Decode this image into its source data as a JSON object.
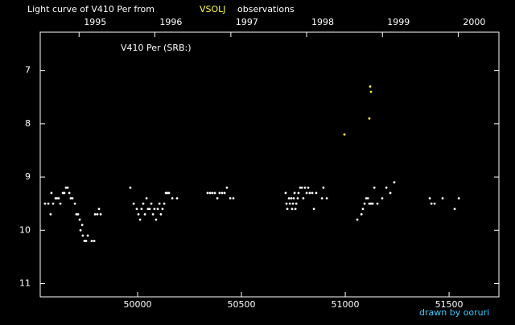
{
  "chart_data": {
    "type": "scatter",
    "title": "Light curve of V410 Per from",
    "title_highlight": "VSOLJ",
    "title_suffix": "observations",
    "annotations": [
      "V410 Per (SRB:)",
      "drawn by ooruri"
    ],
    "xlim": [
      49531,
      51740
    ],
    "ylim": [
      11.25,
      6.28
    ],
    "xticks": [
      50000,
      50500,
      51000,
      51500
    ],
    "yticks": [
      7,
      8,
      9,
      10,
      11
    ],
    "x2ticks": [
      {
        "value": 49718,
        "label": "1995"
      },
      {
        "value": 50083,
        "label": "1996"
      },
      {
        "value": 50449,
        "label": "1997"
      },
      {
        "value": 50814,
        "label": "1998"
      },
      {
        "value": 51179,
        "label": "1999"
      },
      {
        "value": 51544,
        "label": "2000"
      }
    ],
    "series": [
      {
        "color": "#ffffff",
        "x": [
          49554,
          49570,
          49581,
          49585,
          49593,
          49605,
          49612,
          49620,
          49628,
          49640,
          49647,
          49655,
          49663,
          49671,
          49678,
          49686,
          49698,
          49705,
          49713,
          49721,
          49725,
          49733,
          49736,
          49744,
          49752,
          49760,
          49779,
          49791,
          49795,
          49806,
          49814,
          49822,
          49965,
          49981,
          49996,
          50004,
          50012,
          50019,
          50027,
          50035,
          50043,
          50050,
          50058,
          50066,
          50074,
          50081,
          50089,
          50097,
          50105,
          50112,
          50120,
          50128,
          50136,
          50143,
          50151,
          50167,
          50190,
          50337,
          50349,
          50360,
          50372,
          50384,
          50395,
          50407,
          50419,
          50430,
          50446,
          50461,
          50713,
          50717,
          50721,
          50729,
          50733,
          50740,
          50744,
          50748,
          50752,
          50756,
          50760,
          50764,
          50771,
          50775,
          50783,
          50791,
          50798,
          50806,
          50814,
          50822,
          50829,
          50841,
          50849,
          50860,
          50888,
          50895,
          50911,
          51058,
          51078,
          51085,
          51093,
          51101,
          51109,
          51116,
          51124,
          51132,
          51140,
          51155,
          51178,
          51198,
          51217,
          51236,
          51407,
          51415,
          51430,
          51469,
          51527,
          51547
        ],
        "values": [
          9.5,
          9.5,
          9.7,
          9.3,
          9.5,
          9.4,
          9.4,
          9.4,
          9.5,
          9.3,
          9.3,
          9.2,
          9.2,
          9.3,
          9.4,
          9.4,
          9.5,
          9.7,
          9.7,
          9.8,
          10.0,
          9.9,
          10.1,
          10.2,
          10.2,
          10.1,
          10.2,
          10.2,
          9.7,
          9.7,
          9.6,
          9.7,
          9.2,
          9.5,
          9.6,
          9.7,
          9.8,
          9.6,
          9.5,
          9.7,
          9.4,
          9.6,
          9.6,
          9.5,
          9.7,
          9.6,
          9.8,
          9.6,
          9.5,
          9.7,
          9.6,
          9.5,
          9.3,
          9.3,
          9.3,
          9.4,
          9.4,
          9.3,
          9.3,
          9.3,
          9.3,
          9.4,
          9.3,
          9.3,
          9.3,
          9.2,
          9.4,
          9.4,
          9.3,
          9.5,
          9.6,
          9.4,
          9.5,
          9.4,
          9.6,
          9.5,
          9.4,
          9.3,
          9.6,
          9.5,
          9.4,
          9.3,
          9.2,
          9.2,
          9.4,
          9.2,
          9.3,
          9.2,
          9.3,
          9.3,
          9.6,
          9.3,
          9.4,
          9.2,
          9.4,
          9.8,
          9.7,
          9.6,
          9.5,
          9.4,
          9.4,
          9.5,
          9.5,
          9.5,
          9.2,
          9.5,
          9.4,
          9.2,
          9.3,
          9.1,
          9.4,
          9.5,
          9.5,
          9.4,
          9.6,
          9.4
        ]
      },
      {
        "color": "#ffff33",
        "x": [
          50996,
          51116,
          51120,
          51124
        ],
        "values": [
          8.2,
          7.9,
          7.3,
          7.4
        ]
      }
    ]
  }
}
